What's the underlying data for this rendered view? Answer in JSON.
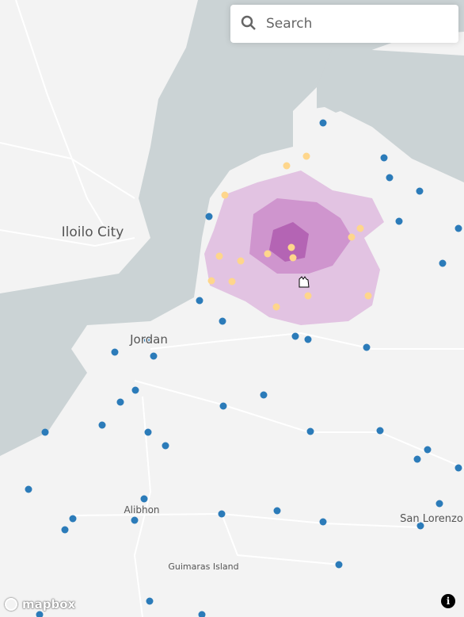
{
  "search": {
    "placeholder": "Search"
  },
  "places": [
    {
      "label": "Iloilo City"
    },
    {
      "label": "Jordan"
    },
    {
      "label": "Alibhon"
    },
    {
      "label": "Guimaras Island"
    },
    {
      "label": "San Lorenzo"
    }
  ],
  "attribution": "mapbox"
}
